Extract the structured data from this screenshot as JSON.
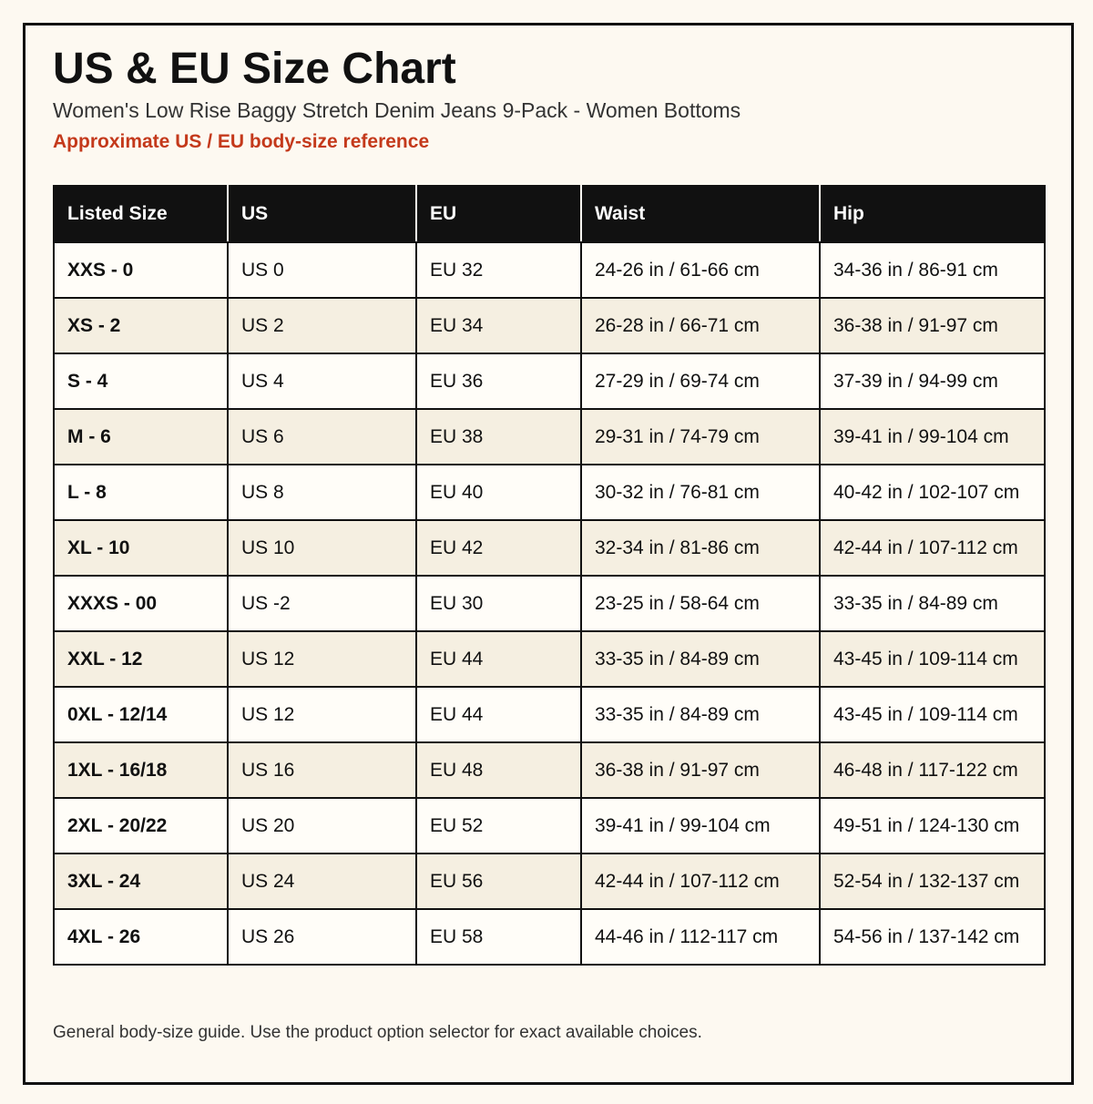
{
  "header": {
    "title": "US & EU Size Chart",
    "subtitle": "Women's Low Rise Baggy Stretch Denim Jeans 9-Pack - Women Bottoms",
    "note": "Approximate US / EU body-size reference"
  },
  "table": {
    "columns": [
      "Listed Size",
      "US",
      "EU",
      "Waist",
      "Hip"
    ],
    "rows": [
      [
        "XXS - 0",
        "US 0",
        "EU 32",
        "24-26 in / 61-66 cm",
        "34-36 in / 86-91 cm"
      ],
      [
        "XS - 2",
        "US 2",
        "EU 34",
        "26-28 in / 66-71 cm",
        "36-38 in / 91-97 cm"
      ],
      [
        "S - 4",
        "US 4",
        "EU 36",
        "27-29 in / 69-74 cm",
        "37-39 in / 94-99 cm"
      ],
      [
        "M - 6",
        "US 6",
        "EU 38",
        "29-31 in / 74-79 cm",
        "39-41 in / 99-104 cm"
      ],
      [
        "L - 8",
        "US 8",
        "EU 40",
        "30-32 in / 76-81 cm",
        "40-42 in / 102-107 cm"
      ],
      [
        "XL - 10",
        "US 10",
        "EU 42",
        "32-34 in / 81-86 cm",
        "42-44 in / 107-112 cm"
      ],
      [
        "XXXS - 00",
        "US -2",
        "EU 30",
        "23-25 in / 58-64 cm",
        "33-35 in / 84-89 cm"
      ],
      [
        "XXL - 12",
        "US 12",
        "EU 44",
        "33-35 in / 84-89 cm",
        "43-45 in / 109-114 cm"
      ],
      [
        "0XL - 12/14",
        "US 12",
        "EU 44",
        "33-35 in / 84-89 cm",
        "43-45 in / 109-114 cm"
      ],
      [
        "1XL - 16/18",
        "US 16",
        "EU 48",
        "36-38 in / 91-97 cm",
        "46-48 in / 117-122 cm"
      ],
      [
        "2XL - 20/22",
        "US 20",
        "EU 52",
        "39-41 in / 99-104 cm",
        "49-51 in / 124-130 cm"
      ],
      [
        "3XL - 24",
        "US 24",
        "EU 56",
        "42-44 in / 107-112 cm",
        "52-54 in / 132-137 cm"
      ],
      [
        "4XL - 26",
        "US 26",
        "EU 58",
        "44-46 in / 112-117 cm",
        "54-56 in / 137-142 cm"
      ]
    ]
  },
  "footer": {
    "text": "General body-size guide. Use the product option selector for exact available choices."
  },
  "colors": {
    "background": "#fdf9f1",
    "header_row": "#111111",
    "accent_note": "#c4391b",
    "row_alt": "#f5efe1"
  }
}
